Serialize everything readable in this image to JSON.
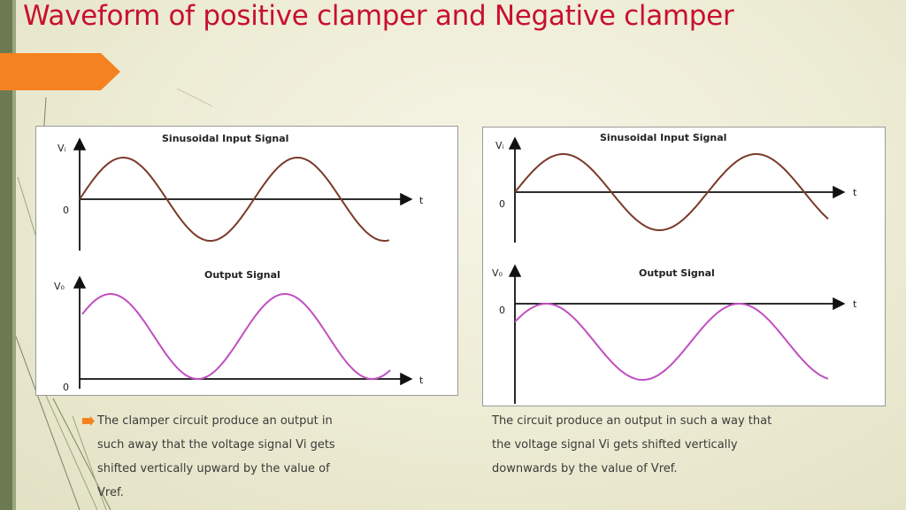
{
  "slide": {
    "title": "Waveform of positive clamper and Negative clamper",
    "accent_color": "#f58220",
    "title_color": "#c8102e"
  },
  "positive_clamper": {
    "input_title": "Sinusoidal Input Signal",
    "output_title": "Output Signal",
    "input_axis_label": "Vᵢ",
    "output_axis_label": "V₀",
    "origin_label": "0",
    "time_label": "t",
    "input_color": "#7a3a2a",
    "output_color": "#c04fc0",
    "description_lines": [
      "The clamper circuit produce an output in",
      "such away that the voltage signal Vi gets",
      " shifted vertically upward by the value of",
      " Vref."
    ]
  },
  "negative_clamper": {
    "input_title": "Sinusoidal Input Signal",
    "output_title": "Output Signal",
    "input_axis_label": "Vᵢ",
    "output_axis_label": "V₀",
    "origin_label": "0",
    "time_label": "t",
    "input_color": "#7a3a2a",
    "output_color": "#c04fc0",
    "description_lines": [
      "The circuit produce an output in such a way that",
      "the voltage signal Vi gets shifted vertically",
      " downwards by the value of Vref."
    ]
  }
}
